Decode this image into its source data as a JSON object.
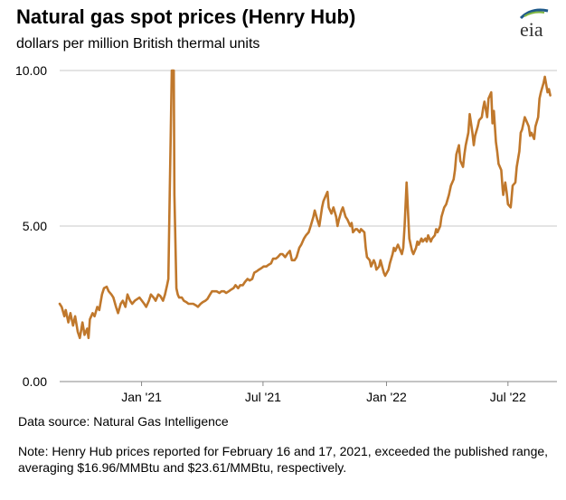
{
  "header": {
    "title": "Natural gas spot prices (Henry Hub)",
    "subtitle": "dollars per million British thermal units",
    "logo_text": "eia"
  },
  "footer": {
    "source": "Data source: Natural Gas Intelligence",
    "note": "Note: Henry Hub prices reported for February 16 and 17, 2021, exceeded the published range, averaging $16.96/MMBtu and $23.61/MMBtu, respectively."
  },
  "colors": {
    "line": "#c0782c",
    "grid": "#c8c8c8",
    "axis": "#888888",
    "logo_blue": "#1f5a8a",
    "logo_green": "#7fb641"
  },
  "chart_data": {
    "type": "line",
    "title": "Natural gas spot prices (Henry Hub)",
    "ylabel": "dollars per million British thermal units",
    "xlabel": "",
    "xlim": [
      "2020-09-01",
      "2022-09-12"
    ],
    "ylim": [
      0,
      10
    ],
    "yticks": [
      0,
      5,
      10
    ],
    "ytick_labels": [
      "0.00",
      "5.00",
      "10.00"
    ],
    "xticks": [
      "2021-01-01",
      "2021-07-01",
      "2022-01-01",
      "2022-07-01"
    ],
    "xtick_labels": [
      "Jan '21",
      "Jul '21",
      "Jan '22",
      "Jul '22"
    ],
    "grid": "horizontal",
    "series": [
      {
        "color": "#c0782c",
        "points": [
          [
            "2020-09-01",
            2.5
          ],
          [
            "2020-09-04",
            2.4
          ],
          [
            "2020-09-08",
            2.1
          ],
          [
            "2020-09-10",
            2.3
          ],
          [
            "2020-09-14",
            1.9
          ],
          [
            "2020-09-17",
            2.2
          ],
          [
            "2020-09-21",
            1.8
          ],
          [
            "2020-09-24",
            2.1
          ],
          [
            "2020-09-28",
            1.6
          ],
          [
            "2020-10-01",
            1.4
          ],
          [
            "2020-10-05",
            1.9
          ],
          [
            "2020-10-08",
            1.5
          ],
          [
            "2020-10-12",
            1.7
          ],
          [
            "2020-10-14",
            1.4
          ],
          [
            "2020-10-16",
            2.0
          ],
          [
            "2020-10-20",
            2.2
          ],
          [
            "2020-10-23",
            2.1
          ],
          [
            "2020-10-27",
            2.4
          ],
          [
            "2020-10-30",
            2.3
          ],
          [
            "2020-11-03",
            2.8
          ],
          [
            "2020-11-06",
            3.0
          ],
          [
            "2020-11-10",
            3.05
          ],
          [
            "2020-11-13",
            2.9
          ],
          [
            "2020-11-17",
            2.8
          ],
          [
            "2020-11-20",
            2.7
          ],
          [
            "2020-11-24",
            2.4
          ],
          [
            "2020-11-27",
            2.2
          ],
          [
            "2020-12-01",
            2.5
          ],
          [
            "2020-12-04",
            2.6
          ],
          [
            "2020-12-08",
            2.4
          ],
          [
            "2020-12-11",
            2.8
          ],
          [
            "2020-12-15",
            2.6
          ],
          [
            "2020-12-18",
            2.5
          ],
          [
            "2020-12-22",
            2.6
          ],
          [
            "2020-12-29",
            2.7
          ],
          [
            "2021-01-05",
            2.5
          ],
          [
            "2021-01-08",
            2.4
          ],
          [
            "2021-01-12",
            2.6
          ],
          [
            "2021-01-15",
            2.8
          ],
          [
            "2021-01-19",
            2.7
          ],
          [
            "2021-01-22",
            2.6
          ],
          [
            "2021-01-26",
            2.8
          ],
          [
            "2021-01-29",
            2.75
          ],
          [
            "2021-02-02",
            2.6
          ],
          [
            "2021-02-05",
            2.8
          ],
          [
            "2021-02-08",
            3.1
          ],
          [
            "2021-02-10",
            3.3
          ],
          [
            "2021-02-12",
            6.0
          ],
          [
            "2021-02-15",
            10.0
          ],
          [
            "2021-02-18",
            10.0
          ],
          [
            "2021-02-19",
            6.0
          ],
          [
            "2021-02-22",
            3.0
          ],
          [
            "2021-02-24",
            2.8
          ],
          [
            "2021-02-26",
            2.7
          ],
          [
            "2021-03-02",
            2.7
          ],
          [
            "2021-03-05",
            2.6
          ],
          [
            "2021-03-09",
            2.55
          ],
          [
            "2021-03-12",
            2.5
          ],
          [
            "2021-03-16",
            2.5
          ],
          [
            "2021-03-19",
            2.5
          ],
          [
            "2021-03-23",
            2.45
          ],
          [
            "2021-03-26",
            2.4
          ],
          [
            "2021-03-30",
            2.5
          ],
          [
            "2021-04-02",
            2.55
          ],
          [
            "2021-04-06",
            2.6
          ],
          [
            "2021-04-09",
            2.65
          ],
          [
            "2021-04-13",
            2.8
          ],
          [
            "2021-04-16",
            2.9
          ],
          [
            "2021-04-20",
            2.9
          ],
          [
            "2021-04-23",
            2.9
          ],
          [
            "2021-04-27",
            2.85
          ],
          [
            "2021-04-30",
            2.9
          ],
          [
            "2021-05-04",
            2.9
          ],
          [
            "2021-05-07",
            2.85
          ],
          [
            "2021-05-11",
            2.9
          ],
          [
            "2021-05-14",
            2.95
          ],
          [
            "2021-05-18",
            3.0
          ],
          [
            "2021-05-21",
            3.1
          ],
          [
            "2021-05-25",
            3.0
          ],
          [
            "2021-05-28",
            3.1
          ],
          [
            "2021-06-01",
            3.1
          ],
          [
            "2021-06-04",
            3.2
          ],
          [
            "2021-06-08",
            3.3
          ],
          [
            "2021-06-11",
            3.25
          ],
          [
            "2021-06-15",
            3.3
          ],
          [
            "2021-06-18",
            3.5
          ],
          [
            "2021-06-22",
            3.55
          ],
          [
            "2021-06-25",
            3.6
          ],
          [
            "2021-06-29",
            3.65
          ],
          [
            "2021-07-02",
            3.7
          ],
          [
            "2021-07-06",
            3.7
          ],
          [
            "2021-07-09",
            3.75
          ],
          [
            "2021-07-13",
            3.8
          ],
          [
            "2021-07-16",
            3.95
          ],
          [
            "2021-07-20",
            3.95
          ],
          [
            "2021-07-23",
            4.0
          ],
          [
            "2021-07-27",
            4.1
          ],
          [
            "2021-07-30",
            4.1
          ],
          [
            "2021-08-03",
            4.0
          ],
          [
            "2021-08-06",
            4.1
          ],
          [
            "2021-08-10",
            4.2
          ],
          [
            "2021-08-13",
            3.9
          ],
          [
            "2021-08-17",
            3.9
          ],
          [
            "2021-08-20",
            4.0
          ],
          [
            "2021-08-24",
            4.3
          ],
          [
            "2021-08-27",
            4.4
          ],
          [
            "2021-08-31",
            4.6
          ],
          [
            "2021-09-03",
            4.7
          ],
          [
            "2021-09-07",
            4.8
          ],
          [
            "2021-09-10",
            5.0
          ],
          [
            "2021-09-14",
            5.3
          ],
          [
            "2021-09-16",
            5.5
          ],
          [
            "2021-09-20",
            5.2
          ],
          [
            "2021-09-23",
            5.0
          ],
          [
            "2021-09-27",
            5.6
          ],
          [
            "2021-09-29",
            5.8
          ],
          [
            "2021-10-01",
            5.9
          ],
          [
            "2021-10-05",
            6.1
          ],
          [
            "2021-10-07",
            5.6
          ],
          [
            "2021-10-11",
            5.4
          ],
          [
            "2021-10-14",
            5.6
          ],
          [
            "2021-10-18",
            5.3
          ],
          [
            "2021-10-20",
            5.0
          ],
          [
            "2021-10-22",
            5.2
          ],
          [
            "2021-10-26",
            5.5
          ],
          [
            "2021-10-28",
            5.6
          ],
          [
            "2021-11-01",
            5.3
          ],
          [
            "2021-11-04",
            5.2
          ],
          [
            "2021-11-08",
            5.0
          ],
          [
            "2021-11-10",
            5.1
          ],
          [
            "2021-11-12",
            4.8
          ],
          [
            "2021-11-16",
            4.9
          ],
          [
            "2021-11-18",
            4.9
          ],
          [
            "2021-11-22",
            4.8
          ],
          [
            "2021-11-24",
            4.9
          ],
          [
            "2021-11-29",
            4.8
          ],
          [
            "2021-12-01",
            4.3
          ],
          [
            "2021-12-03",
            4.0
          ],
          [
            "2021-12-07",
            3.9
          ],
          [
            "2021-12-09",
            3.7
          ],
          [
            "2021-12-13",
            3.9
          ],
          [
            "2021-12-15",
            3.8
          ],
          [
            "2021-12-17",
            3.6
          ],
          [
            "2021-12-21",
            3.7
          ],
          [
            "2021-12-23",
            3.9
          ],
          [
            "2021-12-28",
            3.5
          ],
          [
            "2021-12-30",
            3.4
          ],
          [
            "2022-01-04",
            3.6
          ],
          [
            "2022-01-06",
            3.8
          ],
          [
            "2022-01-10",
            4.1
          ],
          [
            "2022-01-12",
            4.3
          ],
          [
            "2022-01-14",
            4.2
          ],
          [
            "2022-01-18",
            4.4
          ],
          [
            "2022-01-20",
            4.3
          ],
          [
            "2022-01-24",
            4.1
          ],
          [
            "2022-01-26",
            4.3
          ],
          [
            "2022-01-28",
            5.0
          ],
          [
            "2022-01-31",
            6.4
          ],
          [
            "2022-02-02",
            5.5
          ],
          [
            "2022-02-04",
            4.6
          ],
          [
            "2022-02-08",
            4.2
          ],
          [
            "2022-02-10",
            4.1
          ],
          [
            "2022-02-14",
            4.3
          ],
          [
            "2022-02-16",
            4.5
          ],
          [
            "2022-02-18",
            4.4
          ],
          [
            "2022-02-22",
            4.6
          ],
          [
            "2022-02-24",
            4.5
          ],
          [
            "2022-02-28",
            4.6
          ],
          [
            "2022-03-02",
            4.5
          ],
          [
            "2022-03-04",
            4.7
          ],
          [
            "2022-03-08",
            4.5
          ],
          [
            "2022-03-10",
            4.6
          ],
          [
            "2022-03-14",
            4.7
          ],
          [
            "2022-03-16",
            4.9
          ],
          [
            "2022-03-18",
            4.8
          ],
          [
            "2022-03-22",
            5.0
          ],
          [
            "2022-03-24",
            5.3
          ],
          [
            "2022-03-28",
            5.6
          ],
          [
            "2022-03-31",
            5.7
          ],
          [
            "2022-04-04",
            6.0
          ],
          [
            "2022-04-07",
            6.3
          ],
          [
            "2022-04-11",
            6.5
          ],
          [
            "2022-04-13",
            6.8
          ],
          [
            "2022-04-15",
            7.3
          ],
          [
            "2022-04-19",
            7.6
          ],
          [
            "2022-04-21",
            7.1
          ],
          [
            "2022-04-25",
            6.9
          ],
          [
            "2022-04-27",
            7.3
          ],
          [
            "2022-04-29",
            7.6
          ],
          [
            "2022-05-03",
            8.0
          ],
          [
            "2022-05-05",
            8.6
          ],
          [
            "2022-05-09",
            8.0
          ],
          [
            "2022-05-11",
            7.6
          ],
          [
            "2022-05-13",
            7.9
          ],
          [
            "2022-05-17",
            8.2
          ],
          [
            "2022-05-19",
            8.4
          ],
          [
            "2022-05-23",
            8.5
          ],
          [
            "2022-05-25",
            8.8
          ],
          [
            "2022-05-27",
            9.0
          ],
          [
            "2022-05-31",
            8.5
          ],
          [
            "2022-06-02",
            9.1
          ],
          [
            "2022-06-06",
            9.3
          ],
          [
            "2022-06-08",
            8.3
          ],
          [
            "2022-06-10",
            8.7
          ],
          [
            "2022-06-13",
            7.7
          ],
          [
            "2022-06-15",
            7.4
          ],
          [
            "2022-06-17",
            7.0
          ],
          [
            "2022-06-21",
            6.8
          ],
          [
            "2022-06-23",
            6.2
          ],
          [
            "2022-06-24",
            6.0
          ],
          [
            "2022-06-27",
            6.4
          ],
          [
            "2022-06-29",
            6.1
          ],
          [
            "2022-07-01",
            5.7
          ],
          [
            "2022-07-05",
            5.6
          ],
          [
            "2022-07-06",
            5.8
          ],
          [
            "2022-07-08",
            6.3
          ],
          [
            "2022-07-12",
            6.4
          ],
          [
            "2022-07-14",
            6.9
          ],
          [
            "2022-07-18",
            7.4
          ],
          [
            "2022-07-20",
            8.0
          ],
          [
            "2022-07-22",
            8.1
          ],
          [
            "2022-07-26",
            8.5
          ],
          [
            "2022-07-28",
            8.4
          ],
          [
            "2022-08-01",
            8.2
          ],
          [
            "2022-08-03",
            7.9
          ],
          [
            "2022-08-05",
            8.0
          ],
          [
            "2022-08-09",
            7.8
          ],
          [
            "2022-08-11",
            8.2
          ],
          [
            "2022-08-15",
            8.5
          ],
          [
            "2022-08-17",
            9.1
          ],
          [
            "2022-08-19",
            9.3
          ],
          [
            "2022-08-23",
            9.6
          ],
          [
            "2022-08-25",
            9.8
          ],
          [
            "2022-08-29",
            9.3
          ],
          [
            "2022-08-31",
            9.4
          ],
          [
            "2022-09-02",
            9.2
          ]
        ]
      }
    ]
  }
}
